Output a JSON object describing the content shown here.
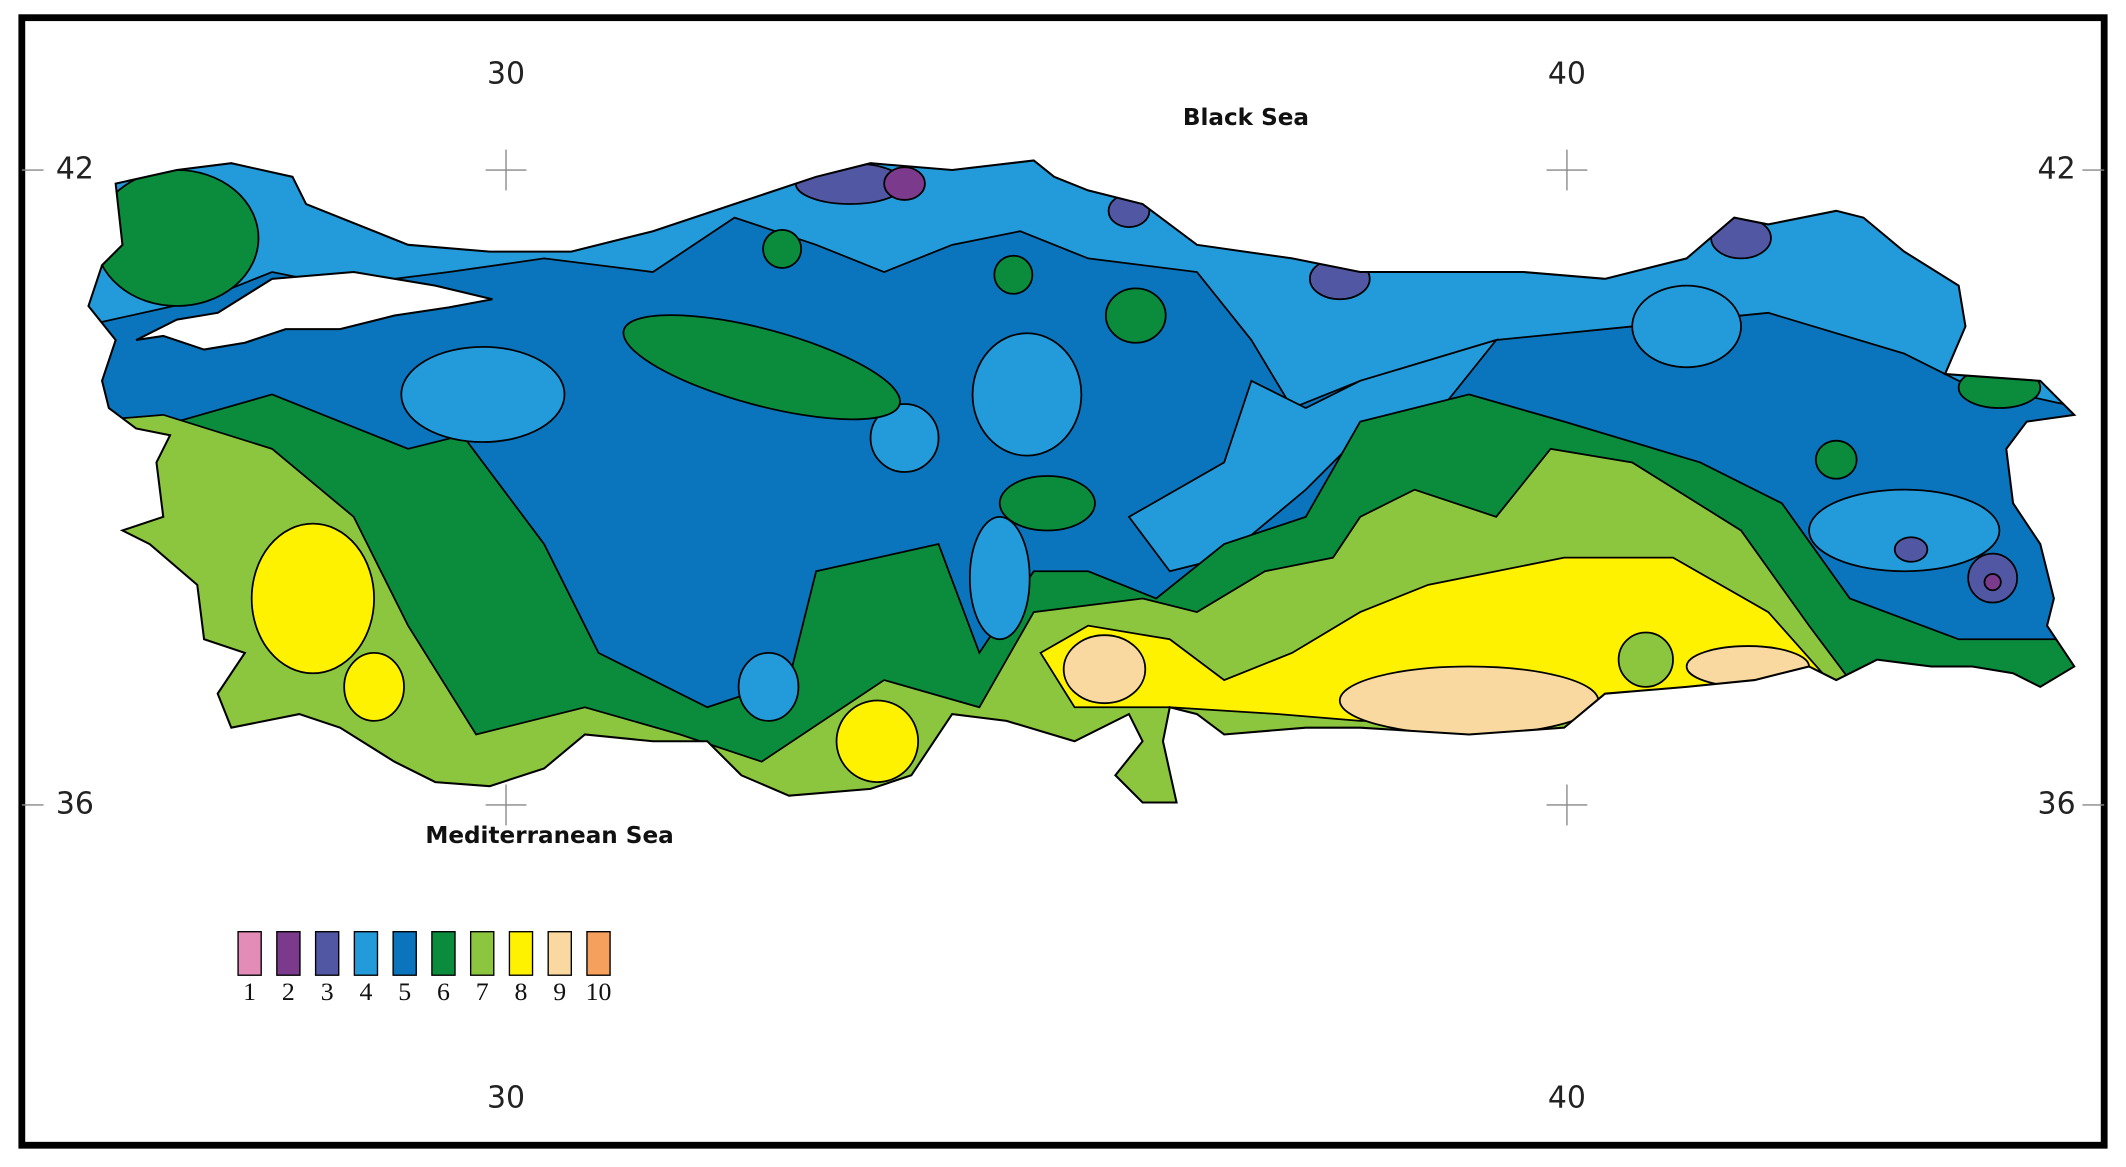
{
  "map": {
    "lon_ticks": [
      30,
      40
    ],
    "lat_ticks": [
      42,
      36
    ],
    "sea_labels": [
      "Black Sea",
      "Mediterranean Sea"
    ],
    "legend": [
      {
        "label": "1",
        "color": "#e48cb8"
      },
      {
        "label": "2",
        "color": "#7b3a8c"
      },
      {
        "label": "3",
        "color": "#5157a3"
      },
      {
        "label": "4",
        "color": "#239bdb"
      },
      {
        "label": "5",
        "color": "#0a75bd"
      },
      {
        "label": "6",
        "color": "#0b8c3c"
      },
      {
        "label": "7",
        "color": "#8cc63f"
      },
      {
        "label": "8",
        "color": "#fff200"
      },
      {
        "label": "9",
        "color": "#f9d9a0"
      },
      {
        "label": "10",
        "color": "#f5a05c"
      }
    ]
  }
}
